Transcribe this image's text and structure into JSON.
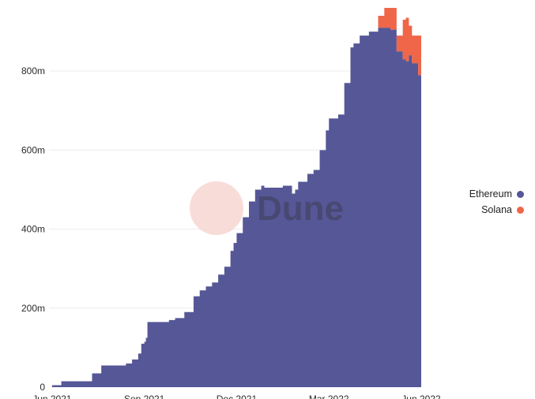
{
  "colors": {
    "ethereum": "#565797",
    "solana": "#ef6648",
    "grid": "#ececec",
    "watermark_circle": "#f7d6d2"
  },
  "watermark": {
    "text": "Dune"
  },
  "legend": {
    "items": [
      {
        "label": "Ethereum",
        "color": "#565797"
      },
      {
        "label": "Solana",
        "color": "#ef6648"
      }
    ]
  },
  "chart_data": {
    "type": "area",
    "stacked": true,
    "y_tick_labels": [
      "0",
      "200m",
      "400m",
      "600m",
      "800m"
    ],
    "y_ticks": [
      0,
      200,
      400,
      600,
      800
    ],
    "x_tick_labels": [
      "Jun 2021",
      "Sep 2021",
      "Dec 2021",
      "Mar 2022",
      "Jun 2022"
    ],
    "x_ticks": [
      0,
      3,
      6,
      9,
      12
    ],
    "ylim": [
      0,
      980
    ],
    "xlim": [
      -0.1,
      12.0
    ],
    "grid": true,
    "legend_position": "right",
    "x": [
      0.0,
      0.3,
      0.8,
      1.1,
      1.3,
      1.5,
      1.6,
      2.0,
      2.2,
      2.4,
      2.6,
      2.8,
      2.9,
      3.0,
      3.05,
      3.1,
      3.5,
      3.8,
      4.0,
      4.3,
      4.6,
      4.8,
      5.0,
      5.2,
      5.4,
      5.6,
      5.8,
      5.9,
      6.0,
      6.2,
      6.4,
      6.6,
      6.8,
      6.9,
      7.0,
      7.5,
      7.8,
      7.9,
      8.0,
      8.3,
      8.5,
      8.7,
      8.9,
      9.0,
      9.3,
      9.5,
      9.7,
      9.8,
      10.0,
      10.3,
      10.6,
      10.8,
      11.0,
      11.2,
      11.4,
      11.5,
      11.6,
      11.7,
      11.9,
      12.0
    ],
    "series": [
      {
        "name": "Ethereum",
        "values": [
          5,
          15,
          15,
          15,
          35,
          35,
          55,
          55,
          55,
          60,
          70,
          85,
          110,
          115,
          125,
          165,
          165,
          170,
          175,
          190,
          230,
          245,
          255,
          265,
          285,
          305,
          345,
          365,
          390,
          430,
          470,
          500,
          510,
          505,
          505,
          510,
          490,
          500,
          520,
          540,
          550,
          600,
          650,
          680,
          690,
          770,
          860,
          870,
          890,
          900,
          910,
          910,
          905,
          850,
          830,
          825,
          840,
          820,
          790,
          770
        ]
      },
      {
        "name": "Solana",
        "values": [
          0,
          0,
          0,
          0,
          0,
          0,
          0,
          0,
          0,
          0,
          0,
          0,
          0,
          0,
          0,
          0,
          0,
          0,
          0,
          0,
          0,
          0,
          0,
          0,
          0,
          0,
          0,
          0,
          0,
          0,
          0,
          0,
          0,
          0,
          0,
          0,
          0,
          0,
          0,
          0,
          0,
          0,
          0,
          0,
          0,
          0,
          0,
          0,
          0,
          0,
          30,
          50,
          55,
          40,
          100,
          110,
          75,
          70,
          100,
          115
        ]
      }
    ]
  }
}
